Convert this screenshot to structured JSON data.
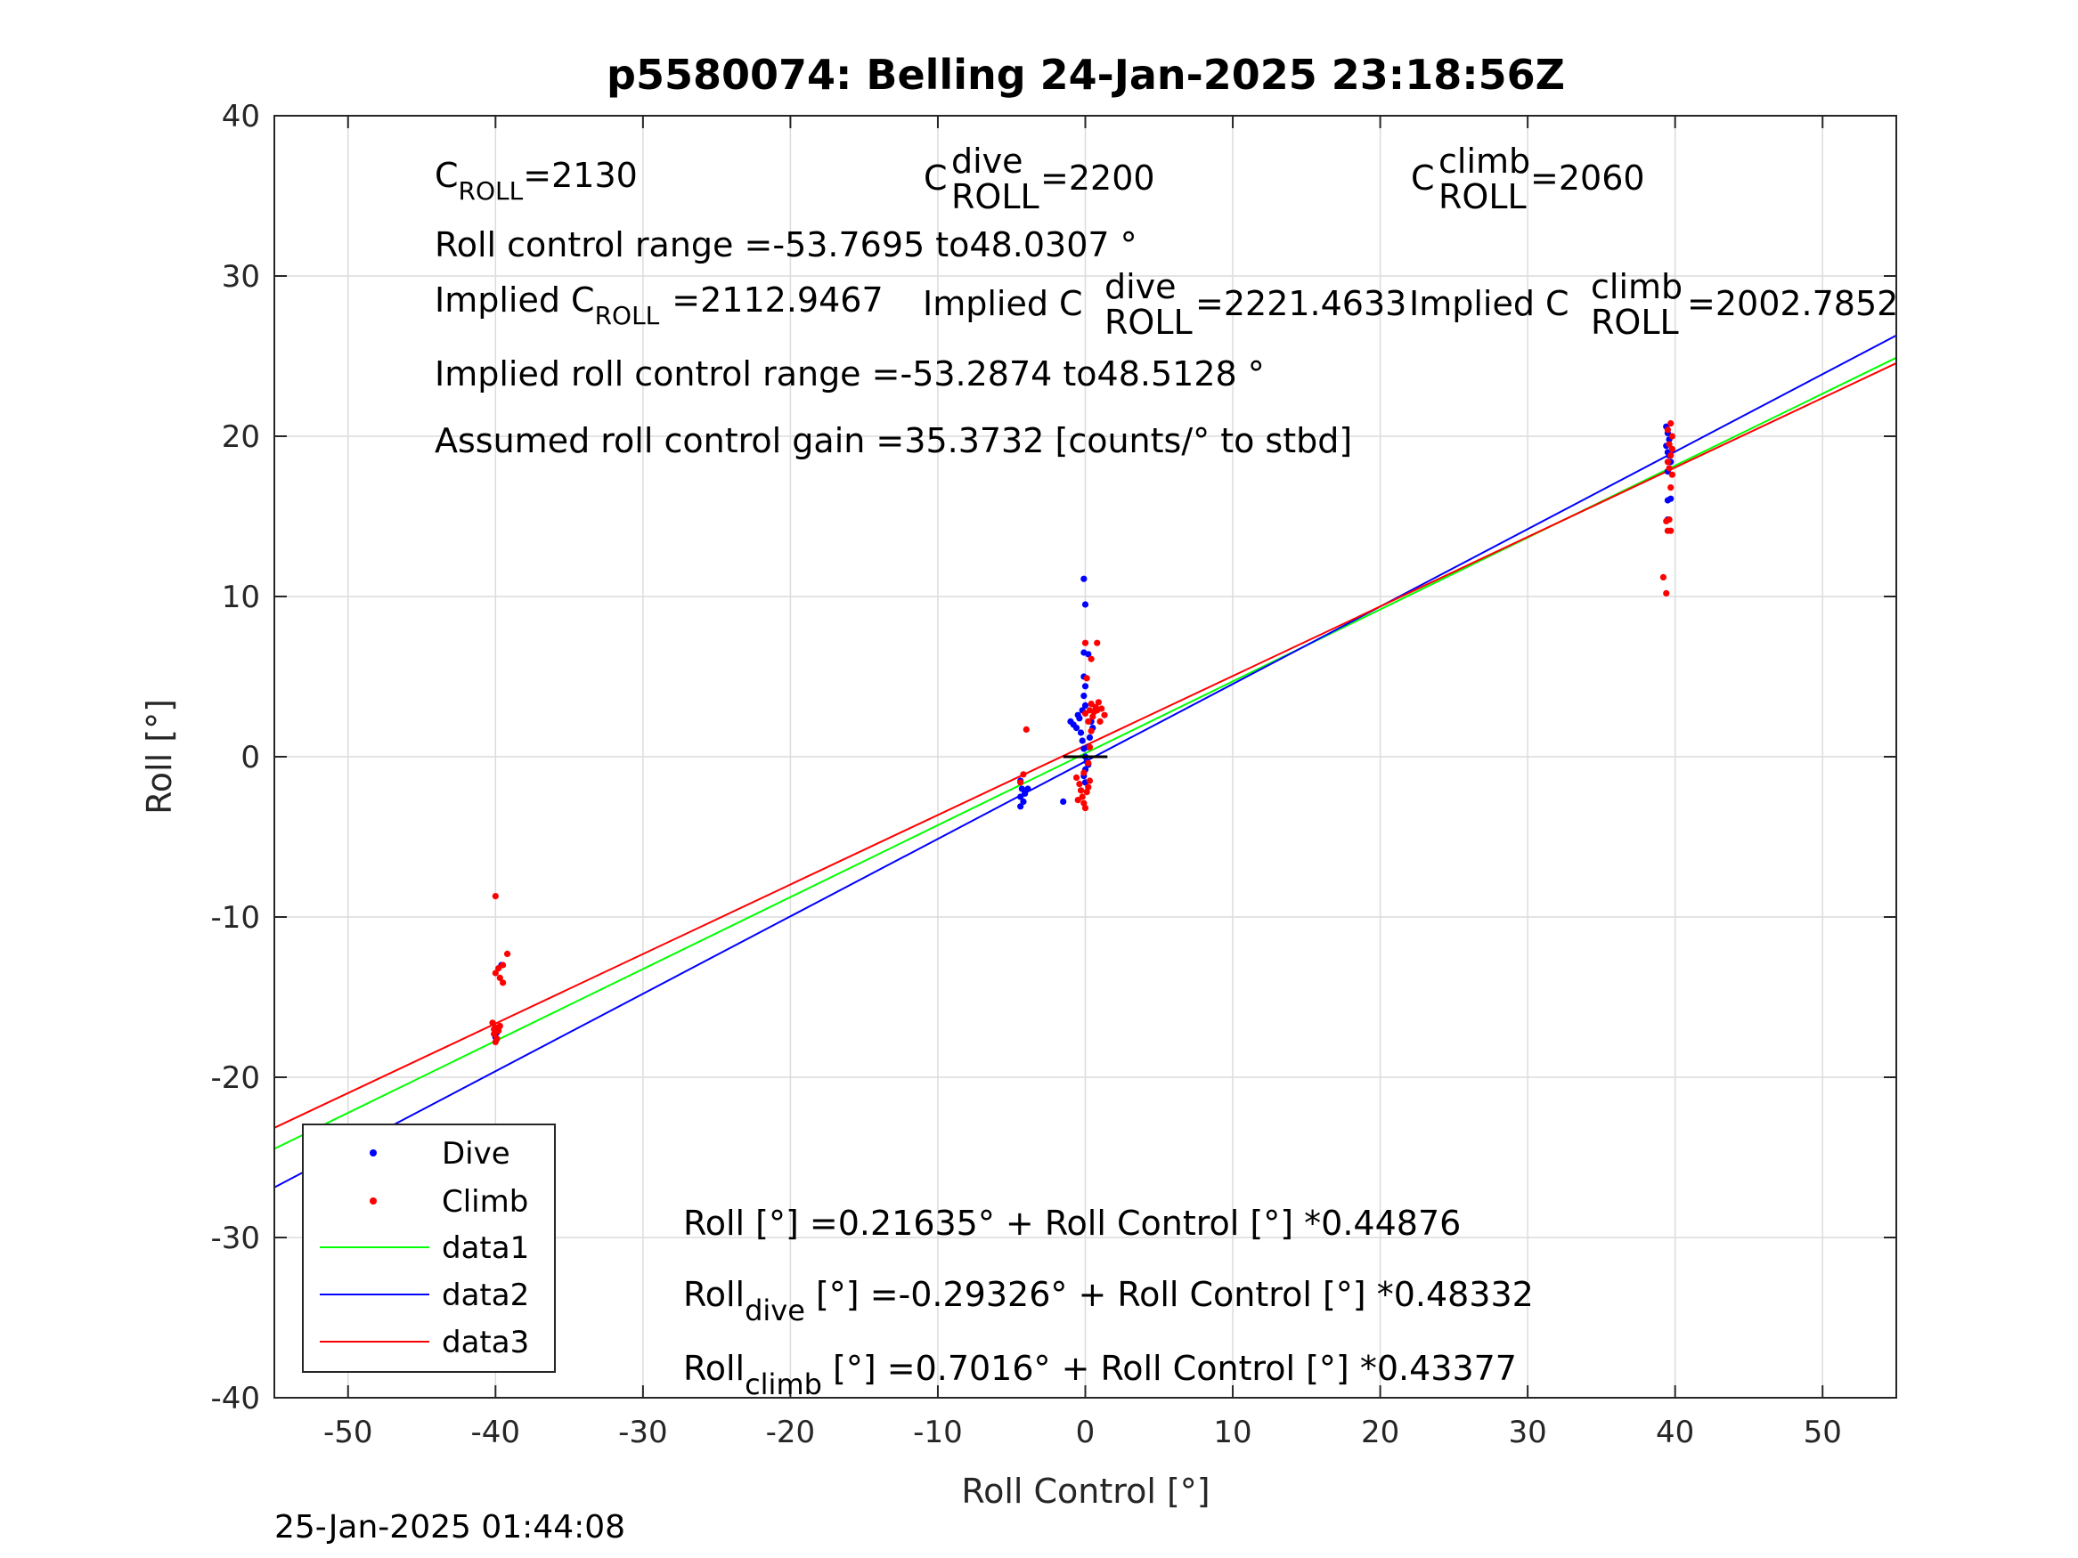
{
  "chart_data": {
    "type": "scatter",
    "title": "p5580074: Belling 24-Jan-2025 23:18:56Z",
    "xlabel": "Roll Control [°]",
    "ylabel": "Roll [°]",
    "xlim": [
      -55,
      55
    ],
    "ylim": [
      -40,
      40
    ],
    "xticks": [
      -50,
      -40,
      -30,
      -20,
      -10,
      0,
      10,
      20,
      30,
      40,
      50
    ],
    "yticks": [
      -40,
      -30,
      -20,
      -10,
      0,
      10,
      20,
      30,
      40
    ],
    "grid": true,
    "legend_position": "bottom-left",
    "footer": "25-Jan-2025 01:44:08",
    "annotations": {
      "c_roll_base": "C",
      "c_roll_sub": "ROLL",
      "c_roll_val": "=2130",
      "c_dive_base": "C",
      "c_dive_sup": "dive",
      "c_dive_sub": "ROLL",
      "c_dive_val": "=2200",
      "c_climb_base": "C",
      "c_climb_sup": "climb",
      "c_climb_sub": "ROLL",
      "c_climb_val": "=2060",
      "range_text": "Roll control range =-53.7695 to48.0307 °",
      "implied_base": "Implied C",
      "implied_sub": "ROLL",
      "implied_val": "=2112.9467",
      "implied_dive_base": "Implied C",
      "implied_dive_sup": "dive",
      "implied_dive_sub": "ROLL",
      "implied_dive_val": "=2221.4633",
      "implied_climb_base": "Implied C",
      "implied_climb_sup": "climb",
      "implied_climb_sub": "ROLL",
      "implied_climb_val": "=2002.7852",
      "implied_range_text": "Implied roll control range =-53.2874 to48.5128 °",
      "gain_text": "Assumed roll control gain =35.3732 [counts/° to stbd]",
      "eq1_text": "Roll [°] =0.21635° + Roll Control [°] *0.44876",
      "eq2_base": "Roll",
      "eq2_sub": "dive",
      "eq2_rest": " [°] =-0.29326° + Roll Control [°] *0.48332",
      "eq3_base": "Roll",
      "eq3_sub": "climb",
      "eq3_rest": " [°] =0.7016° + Roll Control [°] *0.43377"
    },
    "fits": [
      {
        "name": "data1",
        "color": "#00ff00",
        "intercept": 0.21635,
        "slope": 0.44876
      },
      {
        "name": "data2",
        "color": "#0000ff",
        "intercept": -0.29326,
        "slope": 0.48332
      },
      {
        "name": "data3",
        "color": "#ff0000",
        "intercept": 0.7016,
        "slope": 0.43377
      }
    ],
    "series": [
      {
        "name": "Dive",
        "color": "#0000ff",
        "points": [
          [
            -39.9,
            -17.2
          ],
          [
            -40.0,
            -17.5
          ],
          [
            -39.8,
            -16.9
          ],
          [
            -39.6,
            -13.0
          ],
          [
            -4.4,
            -1.5
          ],
          [
            -4.3,
            -2.0
          ],
          [
            -4.4,
            -2.5
          ],
          [
            -4.2,
            -2.8
          ],
          [
            -4.4,
            -3.1
          ],
          [
            -4.1,
            -2.3
          ],
          [
            -3.9,
            -2.0
          ],
          [
            -1.5,
            -2.8
          ],
          [
            -1.0,
            2.2
          ],
          [
            -0.8,
            2.0
          ],
          [
            -0.6,
            1.8
          ],
          [
            -0.5,
            2.6
          ],
          [
            -0.4,
            2.4
          ],
          [
            -0.3,
            1.5
          ],
          [
            -0.2,
            1.0
          ],
          [
            -0.1,
            0.5
          ],
          [
            0.0,
            0.0
          ],
          [
            0.1,
            -0.3
          ],
          [
            0.2,
            -0.5
          ],
          [
            0.0,
            -0.8
          ],
          [
            -0.1,
            -1.2
          ],
          [
            0.0,
            -1.6
          ],
          [
            0.2,
            0.6
          ],
          [
            0.3,
            1.2
          ],
          [
            0.4,
            2.2
          ],
          [
            0.5,
            1.8
          ],
          [
            -0.2,
            2.9
          ],
          [
            0.0,
            3.2
          ],
          [
            -0.1,
            3.8
          ],
          [
            0.0,
            4.4
          ],
          [
            -0.1,
            5.0
          ],
          [
            -0.1,
            6.5
          ],
          [
            0.2,
            6.4
          ],
          [
            0.0,
            9.5
          ],
          [
            -0.1,
            11.1
          ],
          [
            39.4,
            20.6
          ],
          [
            39.5,
            20.2
          ],
          [
            39.6,
            19.8
          ],
          [
            39.4,
            19.4
          ],
          [
            39.5,
            19.0
          ],
          [
            39.6,
            18.8
          ],
          [
            39.7,
            18.4
          ],
          [
            39.5,
            17.8
          ],
          [
            39.5,
            16.0
          ],
          [
            39.7,
            16.1
          ],
          [
            39.5,
            14.8
          ]
        ]
      },
      {
        "name": "Climb",
        "color": "#ff0000",
        "points": [
          [
            -40.0,
            -8.7
          ],
          [
            -39.2,
            -12.3
          ],
          [
            -39.8,
            -13.2
          ],
          [
            -39.5,
            -13.0
          ],
          [
            -40.0,
            -13.5
          ],
          [
            -39.7,
            -13.8
          ],
          [
            -39.5,
            -14.1
          ],
          [
            -40.2,
            -16.6
          ],
          [
            -40.0,
            -16.9
          ],
          [
            -39.8,
            -17.1
          ],
          [
            -40.1,
            -17.3
          ],
          [
            -39.9,
            -17.6
          ],
          [
            -40.0,
            -17.8
          ],
          [
            -39.7,
            -16.8
          ],
          [
            -40.1,
            -17.0
          ],
          [
            -4.0,
            1.7
          ],
          [
            -4.2,
            -1.1
          ],
          [
            -4.4,
            -1.6
          ],
          [
            -0.6,
            -1.3
          ],
          [
            -0.4,
            -1.7
          ],
          [
            -0.3,
            -2.1
          ],
          [
            -0.2,
            -2.5
          ],
          [
            -0.1,
            -2.9
          ],
          [
            0.0,
            -3.2
          ],
          [
            -0.5,
            -2.7
          ],
          [
            0.1,
            -2.2
          ],
          [
            0.2,
            -1.9
          ],
          [
            0.3,
            -1.5
          ],
          [
            -0.1,
            -1.0
          ],
          [
            0.2,
            -0.4
          ],
          [
            0.3,
            0.6
          ],
          [
            0.4,
            1.6
          ],
          [
            0.2,
            2.2
          ],
          [
            0.5,
            2.5
          ],
          [
            0.6,
            2.8
          ],
          [
            0.7,
            3.1
          ],
          [
            0.9,
            3.4
          ],
          [
            1.1,
            3.0
          ],
          [
            0.4,
            3.3
          ],
          [
            0.0,
            2.7
          ],
          [
            0.3,
            2.9
          ],
          [
            1.3,
            2.6
          ],
          [
            1.0,
            2.2
          ],
          [
            0.8,
            2.9
          ],
          [
            0.1,
            4.9
          ],
          [
            0.4,
            6.1
          ],
          [
            0.0,
            7.1
          ],
          [
            0.8,
            7.1
          ],
          [
            39.2,
            11.2
          ],
          [
            39.4,
            10.2
          ],
          [
            39.4,
            14.7
          ],
          [
            39.6,
            14.8
          ],
          [
            39.5,
            14.1
          ],
          [
            39.7,
            14.1
          ],
          [
            39.7,
            16.8
          ],
          [
            39.8,
            17.6
          ],
          [
            39.6,
            18.0
          ],
          [
            39.5,
            18.4
          ],
          [
            39.7,
            18.8
          ],
          [
            39.8,
            19.2
          ],
          [
            39.6,
            19.5
          ],
          [
            39.8,
            20.0
          ],
          [
            39.7,
            20.8
          ],
          [
            39.5,
            20.4
          ]
        ]
      }
    ]
  }
}
